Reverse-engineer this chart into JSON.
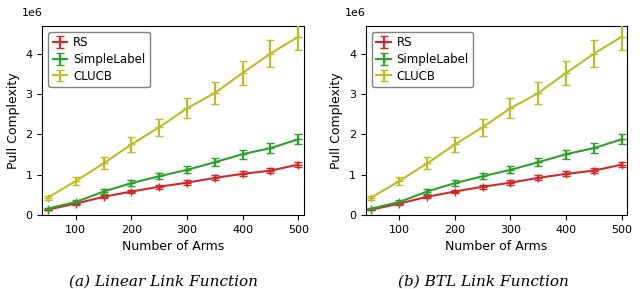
{
  "x": [
    50,
    100,
    150,
    200,
    250,
    300,
    350,
    400,
    450,
    500
  ],
  "left": {
    "RS_y": [
      130000,
      280000,
      450000,
      580000,
      700000,
      800000,
      920000,
      1020000,
      1100000,
      1250000
    ],
    "RS_err": [
      15000,
      25000,
      40000,
      45000,
      50000,
      55000,
      60000,
      60000,
      65000,
      70000
    ],
    "SL_y": [
      155000,
      320000,
      580000,
      790000,
      960000,
      1120000,
      1310000,
      1510000,
      1660000,
      1880000
    ],
    "SL_err": [
      20000,
      40000,
      60000,
      70000,
      80000,
      90000,
      100000,
      110000,
      120000,
      130000
    ],
    "CL_y": [
      430000,
      840000,
      1280000,
      1750000,
      2180000,
      2650000,
      3030000,
      3530000,
      4010000,
      4430000
    ],
    "CL_err": [
      50000,
      100000,
      150000,
      190000,
      210000,
      250000,
      270000,
      290000,
      340000,
      340000
    ]
  },
  "right": {
    "RS_y": [
      130000,
      280000,
      450000,
      580000,
      700000,
      800000,
      920000,
      1020000,
      1100000,
      1250000
    ],
    "RS_err": [
      15000,
      25000,
      40000,
      45000,
      50000,
      55000,
      60000,
      60000,
      65000,
      70000
    ],
    "SL_y": [
      155000,
      320000,
      580000,
      790000,
      960000,
      1120000,
      1310000,
      1510000,
      1660000,
      1880000
    ],
    "SL_err": [
      20000,
      40000,
      60000,
      70000,
      80000,
      90000,
      100000,
      110000,
      120000,
      130000
    ],
    "CL_y": [
      430000,
      840000,
      1280000,
      1750000,
      2180000,
      2650000,
      3030000,
      3530000,
      4010000,
      4430000
    ],
    "CL_err": [
      50000,
      100000,
      150000,
      190000,
      210000,
      250000,
      270000,
      290000,
      340000,
      340000
    ]
  },
  "colors": {
    "RS": "#d62728",
    "SL": "#2ca02c",
    "CL": "#bcbd22"
  },
  "xlabel": "Number of Arms",
  "ylabel": "Pull Complexity",
  "ylim": [
    0,
    4700000
  ],
  "xlim": [
    40,
    510
  ],
  "xticks": [
    100,
    200,
    300,
    400,
    500
  ],
  "yticks": [
    0,
    1000000,
    2000000,
    3000000,
    4000000
  ],
  "yticklabels": [
    "0",
    "1",
    "2",
    "3",
    "4"
  ],
  "caption_left": "(a) Linear Link Function",
  "caption_right": "(b) BTL Link Function",
  "marker": "+",
  "markersize": 6,
  "linewidth": 1.5,
  "capsize": 3,
  "legend_labels": [
    "RS",
    "SimpleLabel",
    "CLUCB"
  ],
  "legend_fontsize": 8.5,
  "axis_fontsize": 9,
  "tick_fontsize": 8,
  "caption_fontsize": 11
}
